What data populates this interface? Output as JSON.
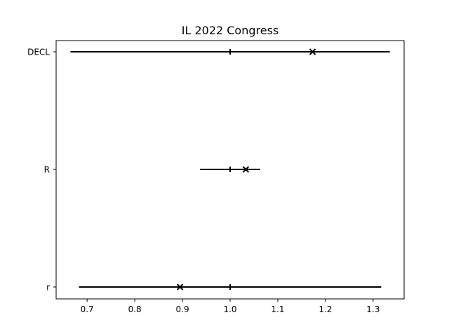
{
  "chart_data": {
    "type": "scatter",
    "title": "IL 2022 Congress",
    "xlabel": "",
    "ylabel": "",
    "xlim": [
      0.635,
      1.365
    ],
    "xticks": [
      0.7,
      0.8,
      0.9,
      1.0,
      1.1,
      1.2,
      1.3
    ],
    "xtick_labels": [
      "0.7",
      "0.8",
      "0.9",
      "1.0",
      "1.1",
      "1.2",
      "1.3"
    ],
    "categories": [
      "DECL",
      "R",
      "r"
    ],
    "rows": [
      {
        "label": "DECL",
        "low": 0.665,
        "high": 1.335,
        "center": 1.0,
        "value": 1.173
      },
      {
        "label": "R",
        "low": 0.937,
        "high": 1.063,
        "center": 1.0,
        "value": 1.033
      },
      {
        "label": "r",
        "low": 0.683,
        "high": 1.317,
        "center": 1.0,
        "value": 0.895
      }
    ],
    "grid": false,
    "color": "#000000"
  }
}
